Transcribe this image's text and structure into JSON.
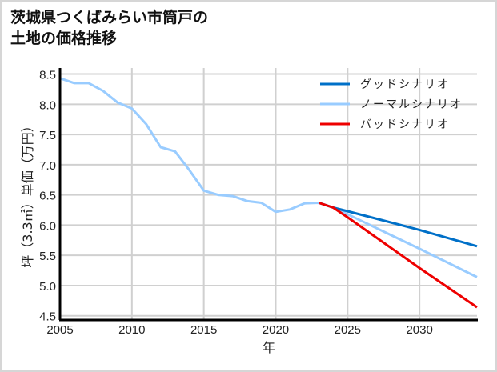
{
  "title": "茨城県つくばみらい市筒戸の\n土地の価格推移",
  "chart_data": {
    "type": "line",
    "title": "茨城県つくばみらい市筒戸の土地の価格推移",
    "xlabel": "年",
    "ylabel": "坪（3.3㎡）単価（万円）",
    "xlim": [
      2005,
      2034
    ],
    "ylim": [
      4.43,
      8.6
    ],
    "grid": true,
    "legend_position": "upper right",
    "x_ticks": [
      2005,
      2010,
      2015,
      2020,
      2025,
      2030
    ],
    "y_ticks": [
      4.5,
      5.0,
      5.5,
      6.0,
      6.5,
      7.0,
      7.5,
      8.0,
      8.5
    ],
    "x_tick_labels": [
      "2005",
      "2010",
      "2015",
      "2020",
      "2025",
      "2030"
    ],
    "y_tick_labels": [
      "4.5",
      "5.0",
      "5.5",
      "6.0",
      "6.5",
      "7.0",
      "7.5",
      "8.0",
      "8.5"
    ],
    "series": [
      {
        "name": "グッドシナリオ",
        "color": "#0070c8",
        "x": [
          2023,
          2024,
          2025,
          2030,
          2034
        ],
        "values": [
          6.37,
          6.29,
          6.23,
          5.92,
          5.65
        ]
      },
      {
        "name": "ノーマルシナリオ",
        "color": "#99ccff",
        "x": [
          2005,
          2006,
          2007,
          2008,
          2009,
          2010,
          2011,
          2012,
          2013,
          2014,
          2015,
          2016,
          2017,
          2018,
          2019,
          2020,
          2021,
          2022,
          2023,
          2024,
          2025,
          2030,
          2034
        ],
        "values": [
          8.43,
          8.35,
          8.35,
          8.22,
          8.03,
          7.93,
          7.67,
          7.29,
          7.22,
          6.91,
          6.57,
          6.5,
          6.48,
          6.4,
          6.37,
          6.22,
          6.26,
          6.36,
          6.37,
          6.29,
          6.18,
          5.61,
          5.14
        ]
      },
      {
        "name": "バッドシナリオ",
        "color": "#ee0000",
        "x": [
          2023,
          2024,
          2025,
          2030,
          2034
        ],
        "values": [
          6.37,
          6.29,
          6.13,
          5.29,
          4.64
        ]
      }
    ]
  },
  "legend": {
    "items": [
      {
        "label": "グッドシナリオ",
        "color": "#0070c8"
      },
      {
        "label": "ノーマルシナリオ",
        "color": "#99ccff"
      },
      {
        "label": "バッドシナリオ",
        "color": "#ee0000"
      }
    ]
  }
}
